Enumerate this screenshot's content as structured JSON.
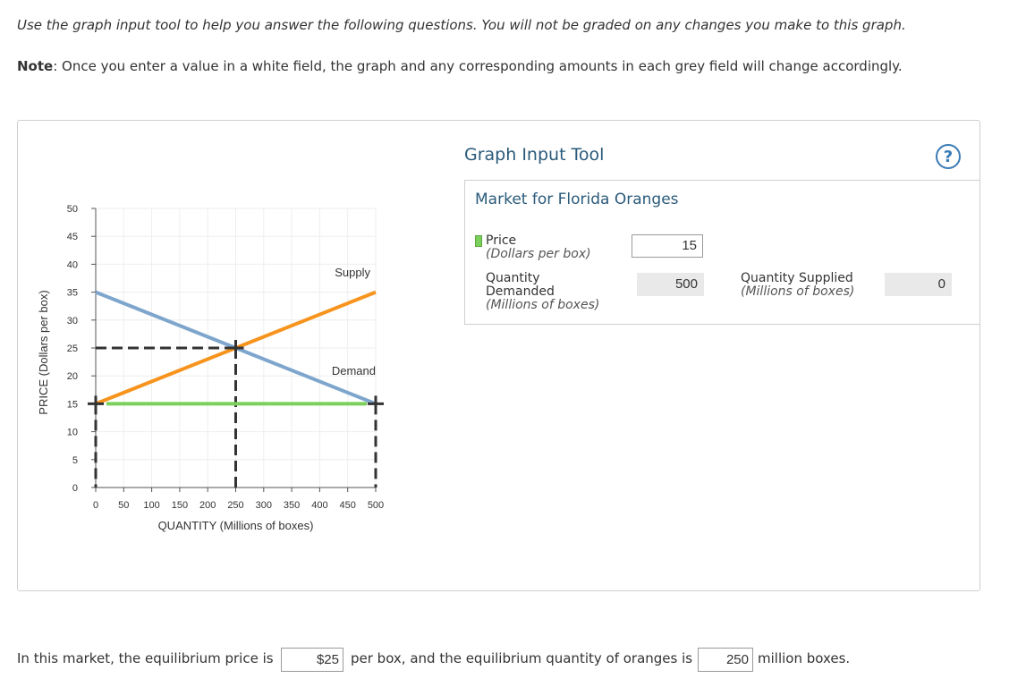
{
  "instructions": {
    "line1": "Use the graph input tool to help you answer the following questions. You will not be graded on any changes you make to this graph.",
    "note_label": "Note",
    "note_text": ": Once you enter a value in a white field, the graph and any corresponding amounts in each grey field will change accordingly."
  },
  "tool": {
    "title": "Graph Input Tool",
    "help_icon": "question-mark-icon",
    "help_glyph": "?",
    "market_title": "Market for Florida Oranges",
    "price_label": "Price",
    "price_unit": "(Dollars per box)",
    "price_value": "15",
    "qd_label_1": "Quantity",
    "qd_label_2": "Demanded",
    "qd_unit": "(Millions of boxes)",
    "qd_value": "500",
    "qs_label": "Quantity Supplied",
    "qs_unit": "(Millions of boxes)",
    "qs_value": "0",
    "price_swatch_color": "#7bd05b"
  },
  "chart_data": {
    "type": "line",
    "ylabel": "PRICE (Dollars per box)",
    "xlabel": "QUANTITY (Millions of boxes)",
    "xlim": [
      0,
      500
    ],
    "ylim": [
      0,
      50
    ],
    "x_ticks": [
      0,
      50,
      100,
      150,
      200,
      250,
      300,
      350,
      400,
      450,
      500
    ],
    "y_ticks": [
      0,
      5,
      10,
      15,
      20,
      25,
      30,
      35,
      40,
      45,
      50
    ],
    "grid": true,
    "series": [
      {
        "name": "Supply",
        "color": "#f7941d",
        "points": [
          [
            0,
            15
          ],
          [
            500,
            35
          ]
        ]
      },
      {
        "name": "Demand",
        "color": "#7ea6cc",
        "points": [
          [
            0,
            35
          ],
          [
            500,
            15
          ]
        ]
      }
    ],
    "price_line": {
      "y": 15,
      "x_from": 0,
      "x_to": 500,
      "color": "#7bd05b"
    },
    "equilibrium": {
      "x": 250,
      "y": 25
    },
    "marker_color": "#333333"
  },
  "answer": {
    "text1": "In this market, the equilibrium price is",
    "price": "$25",
    "text2": "per box, and the equilibrium quantity of oranges is",
    "quantity": "250",
    "text3": "million boxes."
  }
}
